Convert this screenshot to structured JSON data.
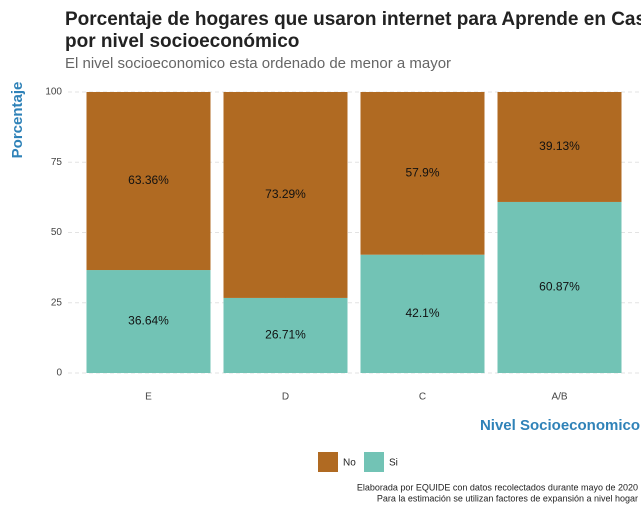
{
  "chart_data": {
    "type": "stacked_bar",
    "title": [
      "Porcentaje de hogares que usaron internet para Aprende en Casa",
      "por nivel socioeconómico"
    ],
    "subtitle": "El nivel socioeconomico esta ordenado de menor a mayor",
    "y_label": "Porcentaje",
    "x_label": "Nivel Socioeconomico",
    "categories": [
      "E",
      "D",
      "C",
      "A/B"
    ],
    "series": [
      {
        "name": "No",
        "color": "#b06a22",
        "values": [
          63.36,
          73.29,
          57.9,
          39.13
        ],
        "value_labels": [
          "63.36%",
          "73.29%",
          "57.9%",
          "39.13%"
        ]
      },
      {
        "name": "Si",
        "color": "#72c3b5",
        "values": [
          36.64,
          26.71,
          42.1,
          60.87
        ],
        "value_labels": [
          "36.64%",
          "26.71%",
          "42.1%",
          "60.87%"
        ]
      }
    ],
    "ylim": [
      0,
      100
    ],
    "yticks": [
      0,
      25,
      50,
      75,
      100
    ],
    "grid": true,
    "legend": "bottom",
    "caption": [
      "Elaborada por EQUIDE con datos recolectados durante mayo de 2020",
      "Para la estimación se utilizan factores de expansión a nivel hogar"
    ]
  }
}
